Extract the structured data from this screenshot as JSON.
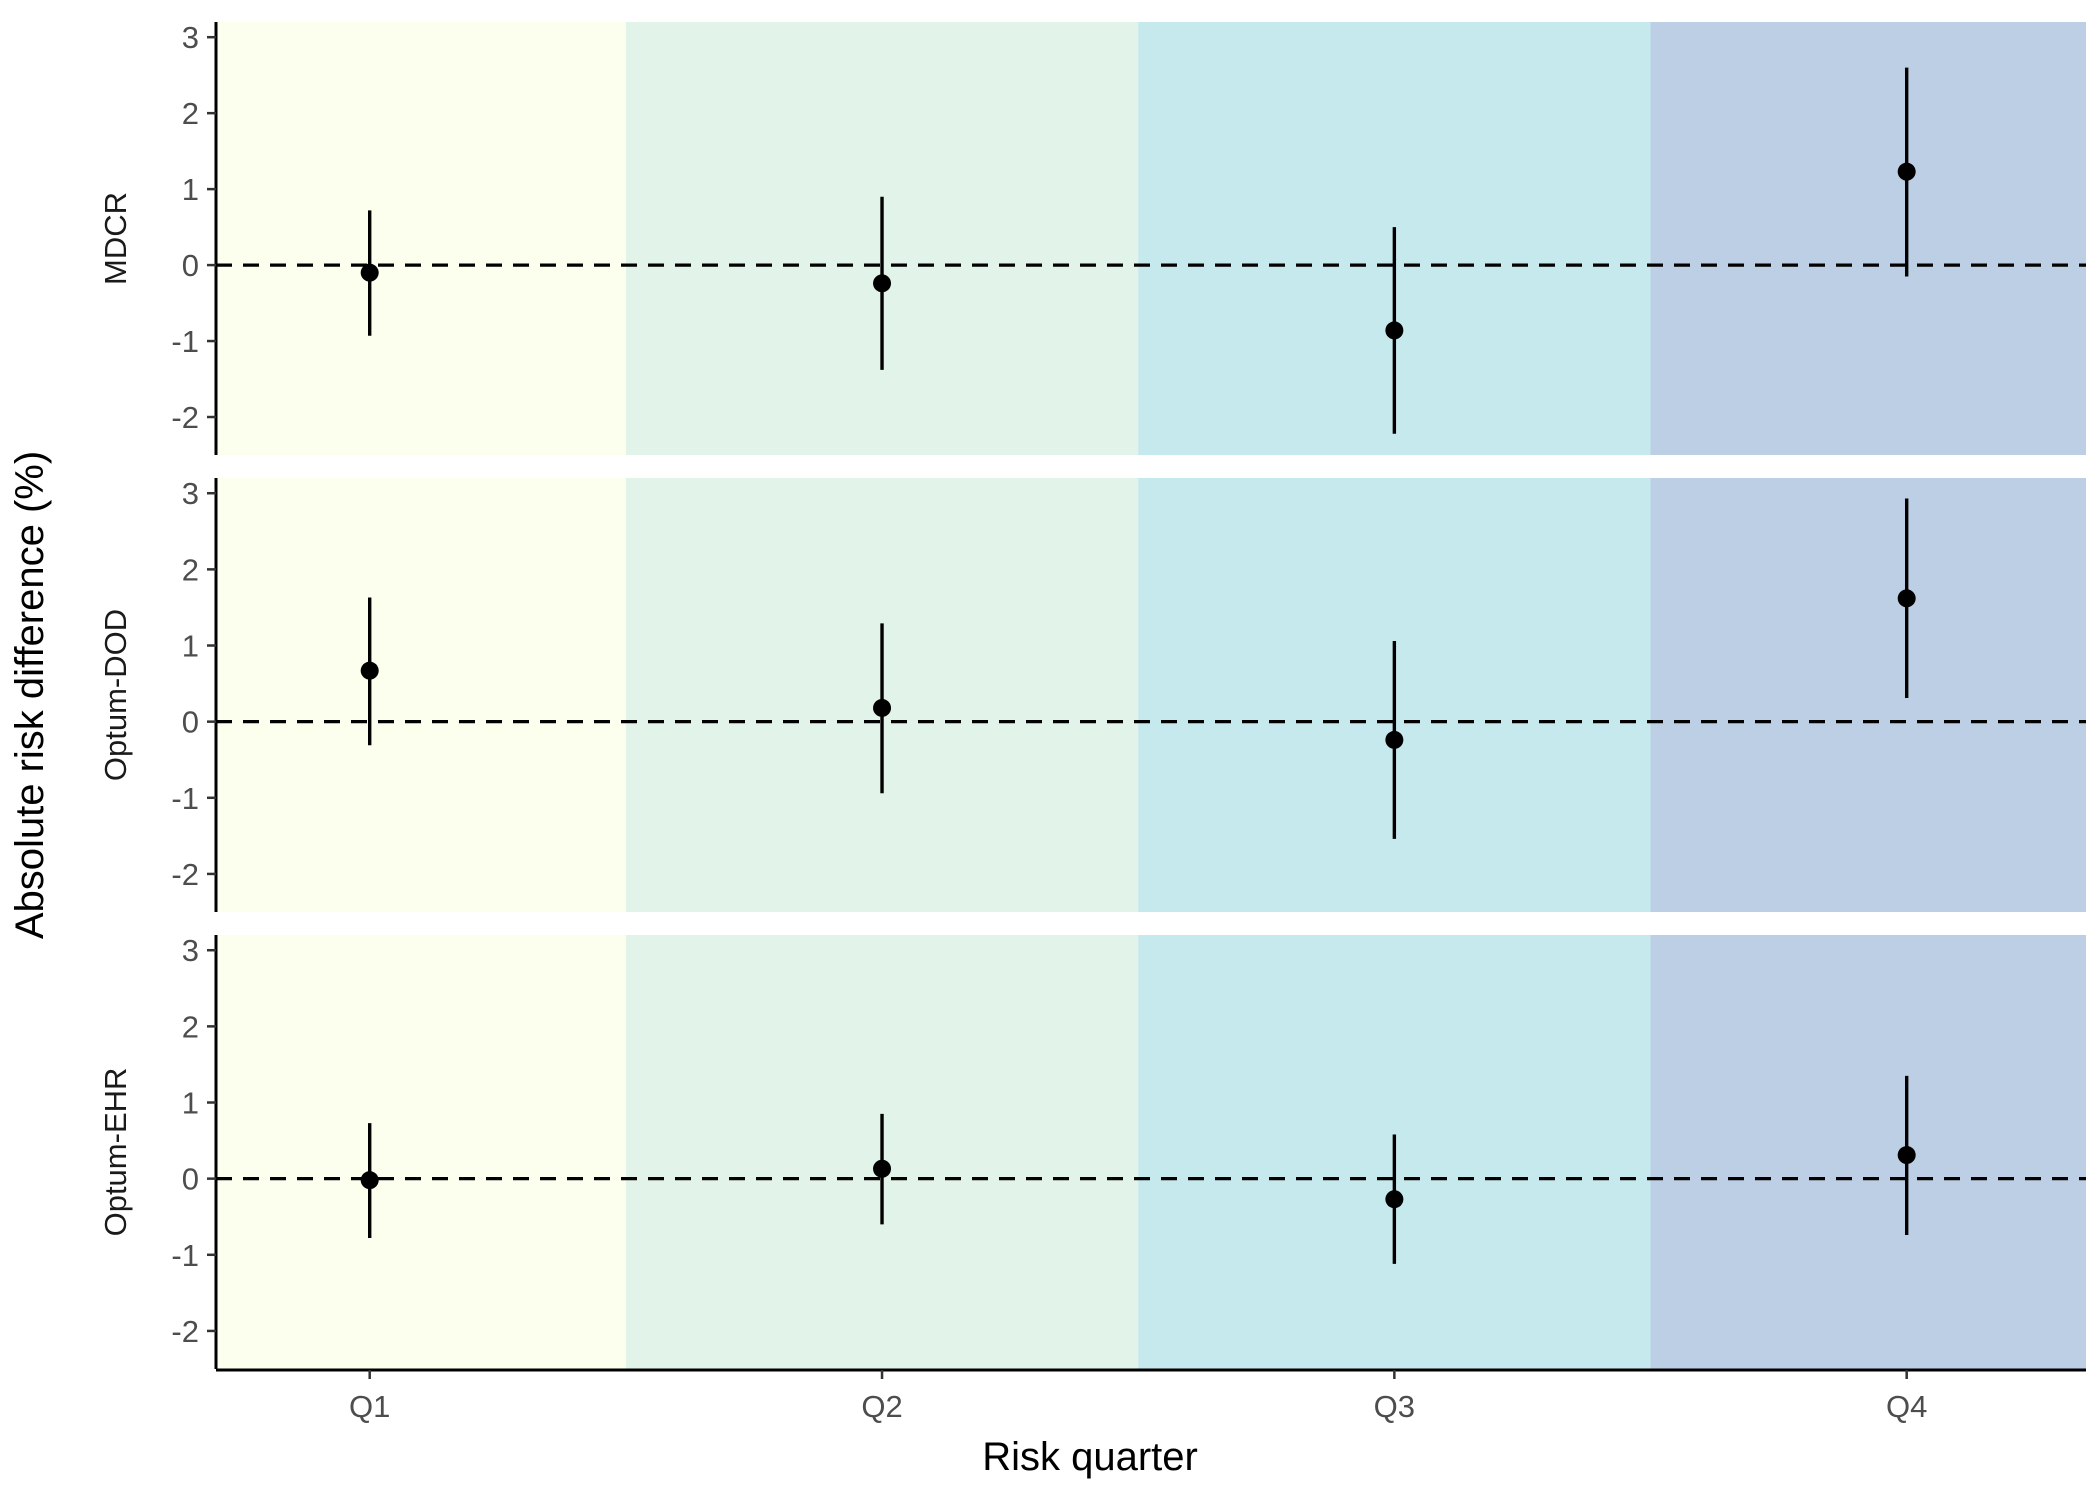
{
  "chart_data": {
    "type": "scatter",
    "subtype": "point-range, faceted",
    "xlabel": "Risk quarter",
    "ylabel": "Absolute risk difference (%)",
    "categories": [
      "Q1",
      "Q2",
      "Q3",
      "Q4"
    ],
    "ylim": [
      -2.5,
      3.2
    ],
    "yticks": [
      -2,
      -1,
      0,
      1,
      2,
      3
    ],
    "reference_line": {
      "y": 0,
      "style": "dashed"
    },
    "grid": false,
    "legend": "none",
    "band_colors": [
      "#fdffee",
      "#e2f3e9",
      "#c6e9ed",
      "#bdcfe4"
    ],
    "facets": [
      {
        "label": "MDCR",
        "points": [
          {
            "x": "Q1",
            "y": -0.1,
            "lo": -0.93,
            "hi": 0.72
          },
          {
            "x": "Q2",
            "y": -0.24,
            "lo": -1.38,
            "hi": 0.9
          },
          {
            "x": "Q3",
            "y": -0.86,
            "lo": -2.22,
            "hi": 0.5
          },
          {
            "x": "Q4",
            "y": 1.23,
            "lo": -0.15,
            "hi": 2.6
          }
        ]
      },
      {
        "label": "Optum-DOD",
        "points": [
          {
            "x": "Q1",
            "y": 0.67,
            "lo": -0.31,
            "hi": 1.63
          },
          {
            "x": "Q2",
            "y": 0.18,
            "lo": -0.94,
            "hi": 1.29
          },
          {
            "x": "Q3",
            "y": -0.24,
            "lo": -1.54,
            "hi": 1.06
          },
          {
            "x": "Q4",
            "y": 1.62,
            "lo": 0.31,
            "hi": 2.93
          }
        ]
      },
      {
        "label": "Optum-EHR",
        "points": [
          {
            "x": "Q1",
            "y": -0.02,
            "lo": -0.78,
            "hi": 0.73
          },
          {
            "x": "Q2",
            "y": 0.13,
            "lo": -0.6,
            "hi": 0.85
          },
          {
            "x": "Q3",
            "y": -0.27,
            "lo": -1.12,
            "hi": 0.58
          },
          {
            "x": "Q4",
            "y": 0.31,
            "lo": -0.74,
            "hi": 1.35
          }
        ]
      }
    ]
  }
}
